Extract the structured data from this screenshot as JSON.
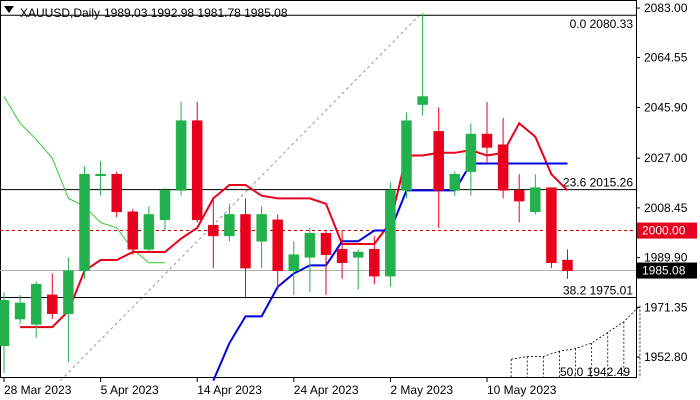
{
  "header": {
    "symbol_timeframe": "XAUUSD,Daily",
    "ohlc": "1989.03 1992.98 1981.78 1985.08"
  },
  "colors": {
    "bull": "#22b14c",
    "bear": "#e8001c",
    "kijun": "#0000dd",
    "tenkan": "#e8001c",
    "chikou": "#33cc33",
    "fib_line": "#000000",
    "support_dashed": "#cc0000",
    "price_box": "#000000",
    "red_box": "#e8001c"
  },
  "chart_data": {
    "type": "candlestick",
    "symbol": "XAUUSD",
    "timeframe": "Daily",
    "ylim": [
      1945,
      2086
    ],
    "y_ticks": [
      "2083.00",
      "2064.55",
      "2045.90",
      "2027.00",
      "2008.45",
      "1989.90",
      "1971.35",
      "1952.80"
    ],
    "x_ticks": [
      "28 Mar 2023",
      "5 Apr 2023",
      "14 Apr 2023",
      "24 Apr 2023",
      "2 May 2023",
      "10 May 2023"
    ],
    "candles": [
      {
        "o": 1957,
        "h": 1977,
        "l": 1947,
        "c": 1974
      },
      {
        "o": 1967,
        "h": 1976,
        "l": 1965,
        "c": 1973
      },
      {
        "o": 1965,
        "h": 1981,
        "l": 1960,
        "c": 1980
      },
      {
        "o": 1976,
        "h": 1984,
        "l": 1967,
        "c": 1969
      },
      {
        "o": 1969,
        "h": 1990,
        "l": 1951,
        "c": 1985
      },
      {
        "o": 1985,
        "h": 2024,
        "l": 1982,
        "c": 2021
      },
      {
        "o": 2021,
        "h": 2026,
        "l": 2013,
        "c": 2021
      },
      {
        "o": 2021,
        "h": 2022,
        "l": 2005,
        "c": 2007
      },
      {
        "o": 2007,
        "h": 2008,
        "l": 1991,
        "c": 1993
      },
      {
        "o": 1993,
        "h": 2009,
        "l": 1992,
        "c": 2006
      },
      {
        "o": 2004,
        "h": 2016,
        "l": 2000,
        "c": 2015
      },
      {
        "o": 2015,
        "h": 2048,
        "l": 2013,
        "c": 2041
      },
      {
        "o": 2041,
        "h": 2048,
        "l": 2003,
        "c": 2004
      },
      {
        "o": 2002,
        "h": 2012,
        "l": 1986,
        "c": 1998
      },
      {
        "o": 1998,
        "h": 2010,
        "l": 1996,
        "c": 2006
      },
      {
        "o": 2006,
        "h": 2012,
        "l": 1975,
        "c": 1986
      },
      {
        "o": 1996,
        "h": 2009,
        "l": 1986,
        "c": 2006
      },
      {
        "o": 2004,
        "h": 2006,
        "l": 1978,
        "c": 1985
      },
      {
        "o": 1985,
        "h": 1996,
        "l": 1976,
        "c": 1991
      },
      {
        "o": 1990,
        "h": 2001,
        "l": 1977,
        "c": 1999
      },
      {
        "o": 1999,
        "h": 2000,
        "l": 1976,
        "c": 1991
      },
      {
        "o": 1993,
        "h": 2000,
        "l": 1982,
        "c": 1988
      },
      {
        "o": 1990,
        "h": 1993,
        "l": 1978,
        "c": 1992
      },
      {
        "o": 1993,
        "h": 1998,
        "l": 1980,
        "c": 1983
      },
      {
        "o": 1983,
        "h": 2018,
        "l": 1979,
        "c": 2015
      },
      {
        "o": 2015,
        "h": 2044,
        "l": 2012,
        "c": 2041
      },
      {
        "o": 2047,
        "h": 2081,
        "l": 2043,
        "c": 2050
      },
      {
        "o": 2037,
        "h": 2046,
        "l": 2001,
        "c": 2015
      },
      {
        "o": 2015,
        "h": 2022,
        "l": 2013,
        "c": 2021
      },
      {
        "o": 2022,
        "h": 2040,
        "l": 2013,
        "c": 2036
      },
      {
        "o": 2036,
        "h": 2048,
        "l": 2025,
        "c": 2031
      },
      {
        "o": 2032,
        "h": 2042,
        "l": 2012,
        "c": 2015
      },
      {
        "o": 2015,
        "h": 2021,
        "l": 2003,
        "c": 2011
      },
      {
        "o": 2007,
        "h": 2021,
        "l": 2006,
        "c": 2016
      },
      {
        "o": 2016,
        "h": 2016,
        "l": 1986,
        "c": 1988
      },
      {
        "o": 1989,
        "h": 1993,
        "l": 1982,
        "c": 1985
      }
    ],
    "tenkan_sen": [
      [
        1,
        1964
      ],
      [
        2,
        1964
      ],
      [
        3,
        1964
      ],
      [
        4,
        1970
      ],
      [
        5,
        1985
      ],
      [
        6,
        1989
      ],
      [
        7,
        1989
      ],
      [
        8,
        1992
      ],
      [
        9,
        1992
      ],
      [
        10,
        1992
      ],
      [
        11,
        1997
      ],
      [
        12,
        2001
      ],
      [
        13,
        2012
      ],
      [
        14,
        2017
      ],
      [
        15,
        2017
      ],
      [
        16,
        2013
      ],
      [
        17,
        2012
      ],
      [
        18,
        2012
      ],
      [
        19,
        2012
      ],
      [
        20,
        2010
      ],
      [
        21,
        1995
      ],
      [
        22,
        1995
      ],
      [
        23,
        1995
      ],
      [
        24,
        2003
      ],
      [
        25,
        2028
      ],
      [
        26,
        2028
      ],
      [
        27,
        2029
      ],
      [
        28,
        2029
      ],
      [
        29,
        2030
      ],
      [
        30,
        2028
      ],
      [
        31,
        2029
      ],
      [
        32,
        2040
      ],
      [
        33,
        2035
      ],
      [
        34,
        2021
      ],
      [
        35,
        2015
      ]
    ],
    "kijun_sen": [
      [
        13,
        1944
      ],
      [
        14,
        1958
      ],
      [
        15,
        1968
      ],
      [
        16,
        1968
      ],
      [
        17,
        1979
      ],
      [
        18,
        1984
      ],
      [
        19,
        1987
      ],
      [
        20,
        1987
      ],
      [
        21,
        1996
      ],
      [
        22,
        1996
      ],
      [
        23,
        2000
      ],
      [
        24,
        2000
      ],
      [
        25,
        2015
      ],
      [
        26,
        2015
      ],
      [
        27,
        2015
      ],
      [
        28,
        2015
      ],
      [
        29,
        2025
      ],
      [
        30,
        2025
      ],
      [
        31,
        2025
      ],
      [
        32,
        2025
      ],
      [
        33,
        2025
      ],
      [
        34,
        2025
      ],
      [
        35,
        2025
      ]
    ],
    "chikou_span": [
      [
        0,
        2050
      ],
      [
        1,
        2040
      ],
      [
        2,
        2034
      ],
      [
        3,
        2027
      ],
      [
        4,
        2012
      ],
      [
        5,
        2009
      ],
      [
        6,
        2003
      ],
      [
        7,
        2001
      ],
      [
        8,
        1993
      ],
      [
        9,
        1988
      ],
      [
        10,
        1988
      ]
    ],
    "fib_levels": [
      {
        "label": "0.0 2080.33",
        "value": 2080.33
      },
      {
        "label": "23.6 2015.26",
        "value": 2015.26
      },
      {
        "label": "38.2 1975.01",
        "value": 1975.01
      },
      {
        "label": "50.0 1942.49",
        "value": 1942.49
      }
    ],
    "support_dashed": {
      "value": 2000.0,
      "label": "2000.00"
    },
    "current_price": {
      "value": 1985.08,
      "label": "1985.08"
    }
  }
}
